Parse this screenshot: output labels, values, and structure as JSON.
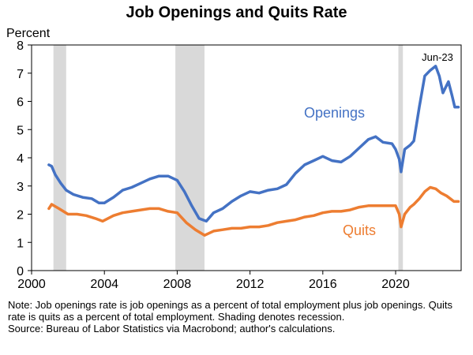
{
  "chart_data": {
    "type": "line",
    "title": "Job Openings and Quits Rate",
    "ylabel": "Percent",
    "xlim": [
      2000,
      2023.6
    ],
    "ylim": [
      0,
      8
    ],
    "x_ticks": [
      "2000",
      "2004",
      "2008",
      "2012",
      "2016",
      "2020"
    ],
    "y_ticks": [
      "0",
      "1",
      "2",
      "3",
      "4",
      "5",
      "6",
      "7",
      "8"
    ],
    "grid": false,
    "legend": "inline labels",
    "recessions": [
      [
        2001.2,
        2001.9
      ],
      [
        2007.9,
        2009.5
      ],
      [
        2020.15,
        2020.4
      ]
    ],
    "annotations": [
      {
        "text": "Jun-23"
      }
    ],
    "series": [
      {
        "name": "Openings",
        "color": "#4472C4",
        "points": [
          [
            2000.95,
            3.75
          ],
          [
            2001.1,
            3.7
          ],
          [
            2001.3,
            3.4
          ],
          [
            2001.6,
            3.1
          ],
          [
            2001.9,
            2.85
          ],
          [
            2002.3,
            2.7
          ],
          [
            2002.8,
            2.6
          ],
          [
            2003.3,
            2.55
          ],
          [
            2003.7,
            2.4
          ],
          [
            2004.0,
            2.4
          ],
          [
            2004.5,
            2.6
          ],
          [
            2005.0,
            2.85
          ],
          [
            2005.5,
            2.95
          ],
          [
            2006.0,
            3.1
          ],
          [
            2006.5,
            3.25
          ],
          [
            2007.0,
            3.35
          ],
          [
            2007.5,
            3.35
          ],
          [
            2008.0,
            3.2
          ],
          [
            2008.4,
            2.8
          ],
          [
            2008.8,
            2.3
          ],
          [
            2009.2,
            1.85
          ],
          [
            2009.6,
            1.75
          ],
          [
            2010.0,
            2.05
          ],
          [
            2010.5,
            2.2
          ],
          [
            2011.0,
            2.45
          ],
          [
            2011.5,
            2.65
          ],
          [
            2012.0,
            2.8
          ],
          [
            2012.5,
            2.75
          ],
          [
            2013.0,
            2.85
          ],
          [
            2013.5,
            2.9
          ],
          [
            2014.0,
            3.05
          ],
          [
            2014.5,
            3.45
          ],
          [
            2015.0,
            3.75
          ],
          [
            2015.5,
            3.9
          ],
          [
            2016.0,
            4.05
          ],
          [
            2016.5,
            3.9
          ],
          [
            2017.0,
            3.85
          ],
          [
            2017.5,
            4.05
          ],
          [
            2018.0,
            4.35
          ],
          [
            2018.5,
            4.65
          ],
          [
            2018.9,
            4.75
          ],
          [
            2019.3,
            4.55
          ],
          [
            2019.8,
            4.5
          ],
          [
            2020.0,
            4.3
          ],
          [
            2020.2,
            3.95
          ],
          [
            2020.3,
            3.5
          ],
          [
            2020.5,
            4.3
          ],
          [
            2020.8,
            4.45
          ],
          [
            2021.0,
            4.6
          ],
          [
            2021.3,
            5.8
          ],
          [
            2021.6,
            6.9
          ],
          [
            2021.9,
            7.1
          ],
          [
            2022.2,
            7.25
          ],
          [
            2022.4,
            6.9
          ],
          [
            2022.6,
            6.3
          ],
          [
            2022.9,
            6.7
          ],
          [
            2023.1,
            6.2
          ],
          [
            2023.25,
            5.8
          ],
          [
            2023.45,
            5.8
          ]
        ]
      },
      {
        "name": "Quits",
        "color": "#ED7D31",
        "points": [
          [
            2000.95,
            2.2
          ],
          [
            2001.1,
            2.35
          ],
          [
            2001.5,
            2.2
          ],
          [
            2002.0,
            2.0
          ],
          [
            2002.5,
            2.0
          ],
          [
            2003.0,
            1.95
          ],
          [
            2003.5,
            1.85
          ],
          [
            2003.9,
            1.75
          ],
          [
            2004.5,
            1.95
          ],
          [
            2005.0,
            2.05
          ],
          [
            2005.5,
            2.1
          ],
          [
            2006.0,
            2.15
          ],
          [
            2006.5,
            2.2
          ],
          [
            2007.0,
            2.2
          ],
          [
            2007.5,
            2.1
          ],
          [
            2008.0,
            2.05
          ],
          [
            2008.5,
            1.7
          ],
          [
            2009.0,
            1.45
          ],
          [
            2009.5,
            1.25
          ],
          [
            2010.0,
            1.4
          ],
          [
            2010.5,
            1.45
          ],
          [
            2011.0,
            1.5
          ],
          [
            2011.5,
            1.5
          ],
          [
            2012.0,
            1.55
          ],
          [
            2012.5,
            1.55
          ],
          [
            2013.0,
            1.6
          ],
          [
            2013.5,
            1.7
          ],
          [
            2014.0,
            1.75
          ],
          [
            2014.5,
            1.8
          ],
          [
            2015.0,
            1.9
          ],
          [
            2015.5,
            1.95
          ],
          [
            2016.0,
            2.05
          ],
          [
            2016.5,
            2.1
          ],
          [
            2017.0,
            2.1
          ],
          [
            2017.5,
            2.15
          ],
          [
            2018.0,
            2.25
          ],
          [
            2018.5,
            2.3
          ],
          [
            2019.0,
            2.3
          ],
          [
            2019.5,
            2.3
          ],
          [
            2020.0,
            2.3
          ],
          [
            2020.2,
            2.0
          ],
          [
            2020.3,
            1.55
          ],
          [
            2020.5,
            2.0
          ],
          [
            2020.8,
            2.25
          ],
          [
            2021.0,
            2.35
          ],
          [
            2021.3,
            2.55
          ],
          [
            2021.6,
            2.8
          ],
          [
            2021.9,
            2.95
          ],
          [
            2022.2,
            2.9
          ],
          [
            2022.5,
            2.75
          ],
          [
            2022.8,
            2.65
          ],
          [
            2023.0,
            2.55
          ],
          [
            2023.2,
            2.45
          ],
          [
            2023.45,
            2.45
          ]
        ]
      }
    ]
  },
  "notes": {
    "line1": "Note: Job openings rate is job openings as a percent of total employment plus job openings. Quits rate is quits as a percent of total employment. Shading denotes recession.",
    "line2": "Source: Bureau of Labor Statistics via Macrobond; author's calculations."
  }
}
